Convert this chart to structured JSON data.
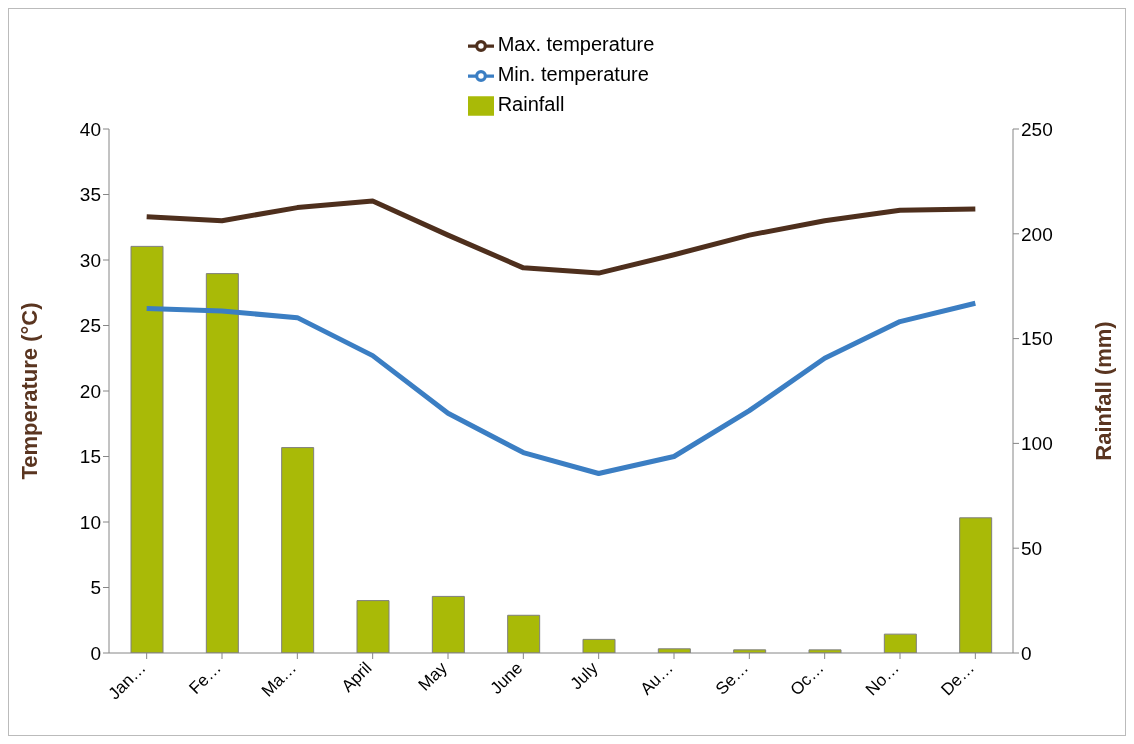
{
  "chart_data": {
    "type": "bar",
    "categories": [
      "Jan…",
      "Fe…",
      "Ma…",
      "April",
      "May",
      "June",
      "July",
      "Au…",
      "Se…",
      "Oc…",
      "No…",
      "De…"
    ],
    "series": [
      {
        "name": "Rainfall",
        "axis": "y2",
        "color": "#a9ba07",
        "values": [
          194,
          181,
          98,
          25,
          27,
          18,
          6.5,
          2,
          1.5,
          1.5,
          9,
          64.5
        ]
      },
      {
        "name": "Max. temperature",
        "type": "line",
        "color": "#4e2f1d",
        "values": [
          33.3,
          33.0,
          34.0,
          34.5,
          31.9,
          29.4,
          29.0,
          30.4,
          31.9,
          33.0,
          33.8,
          33.9
        ]
      },
      {
        "name": "Min. temperature",
        "type": "line",
        "color": "#3b7ec3",
        "values": [
          26.3,
          26.1,
          25.6,
          22.7,
          18.3,
          15.3,
          13.7,
          15.0,
          18.5,
          22.5,
          25.3,
          26.7
        ]
      }
    ],
    "ylabel": "Temperature (°C)",
    "y2label": "Rainfall (mm)",
    "ylim": [
      0,
      40
    ],
    "yticks": [
      0,
      5,
      10,
      15,
      20,
      25,
      30,
      35,
      40
    ],
    "y2lim": [
      0,
      250
    ],
    "y2ticks": [
      0,
      50,
      100,
      150,
      200,
      250
    ],
    "grid": false,
    "legend": "top",
    "marker": "none",
    "line_style": "solid"
  }
}
